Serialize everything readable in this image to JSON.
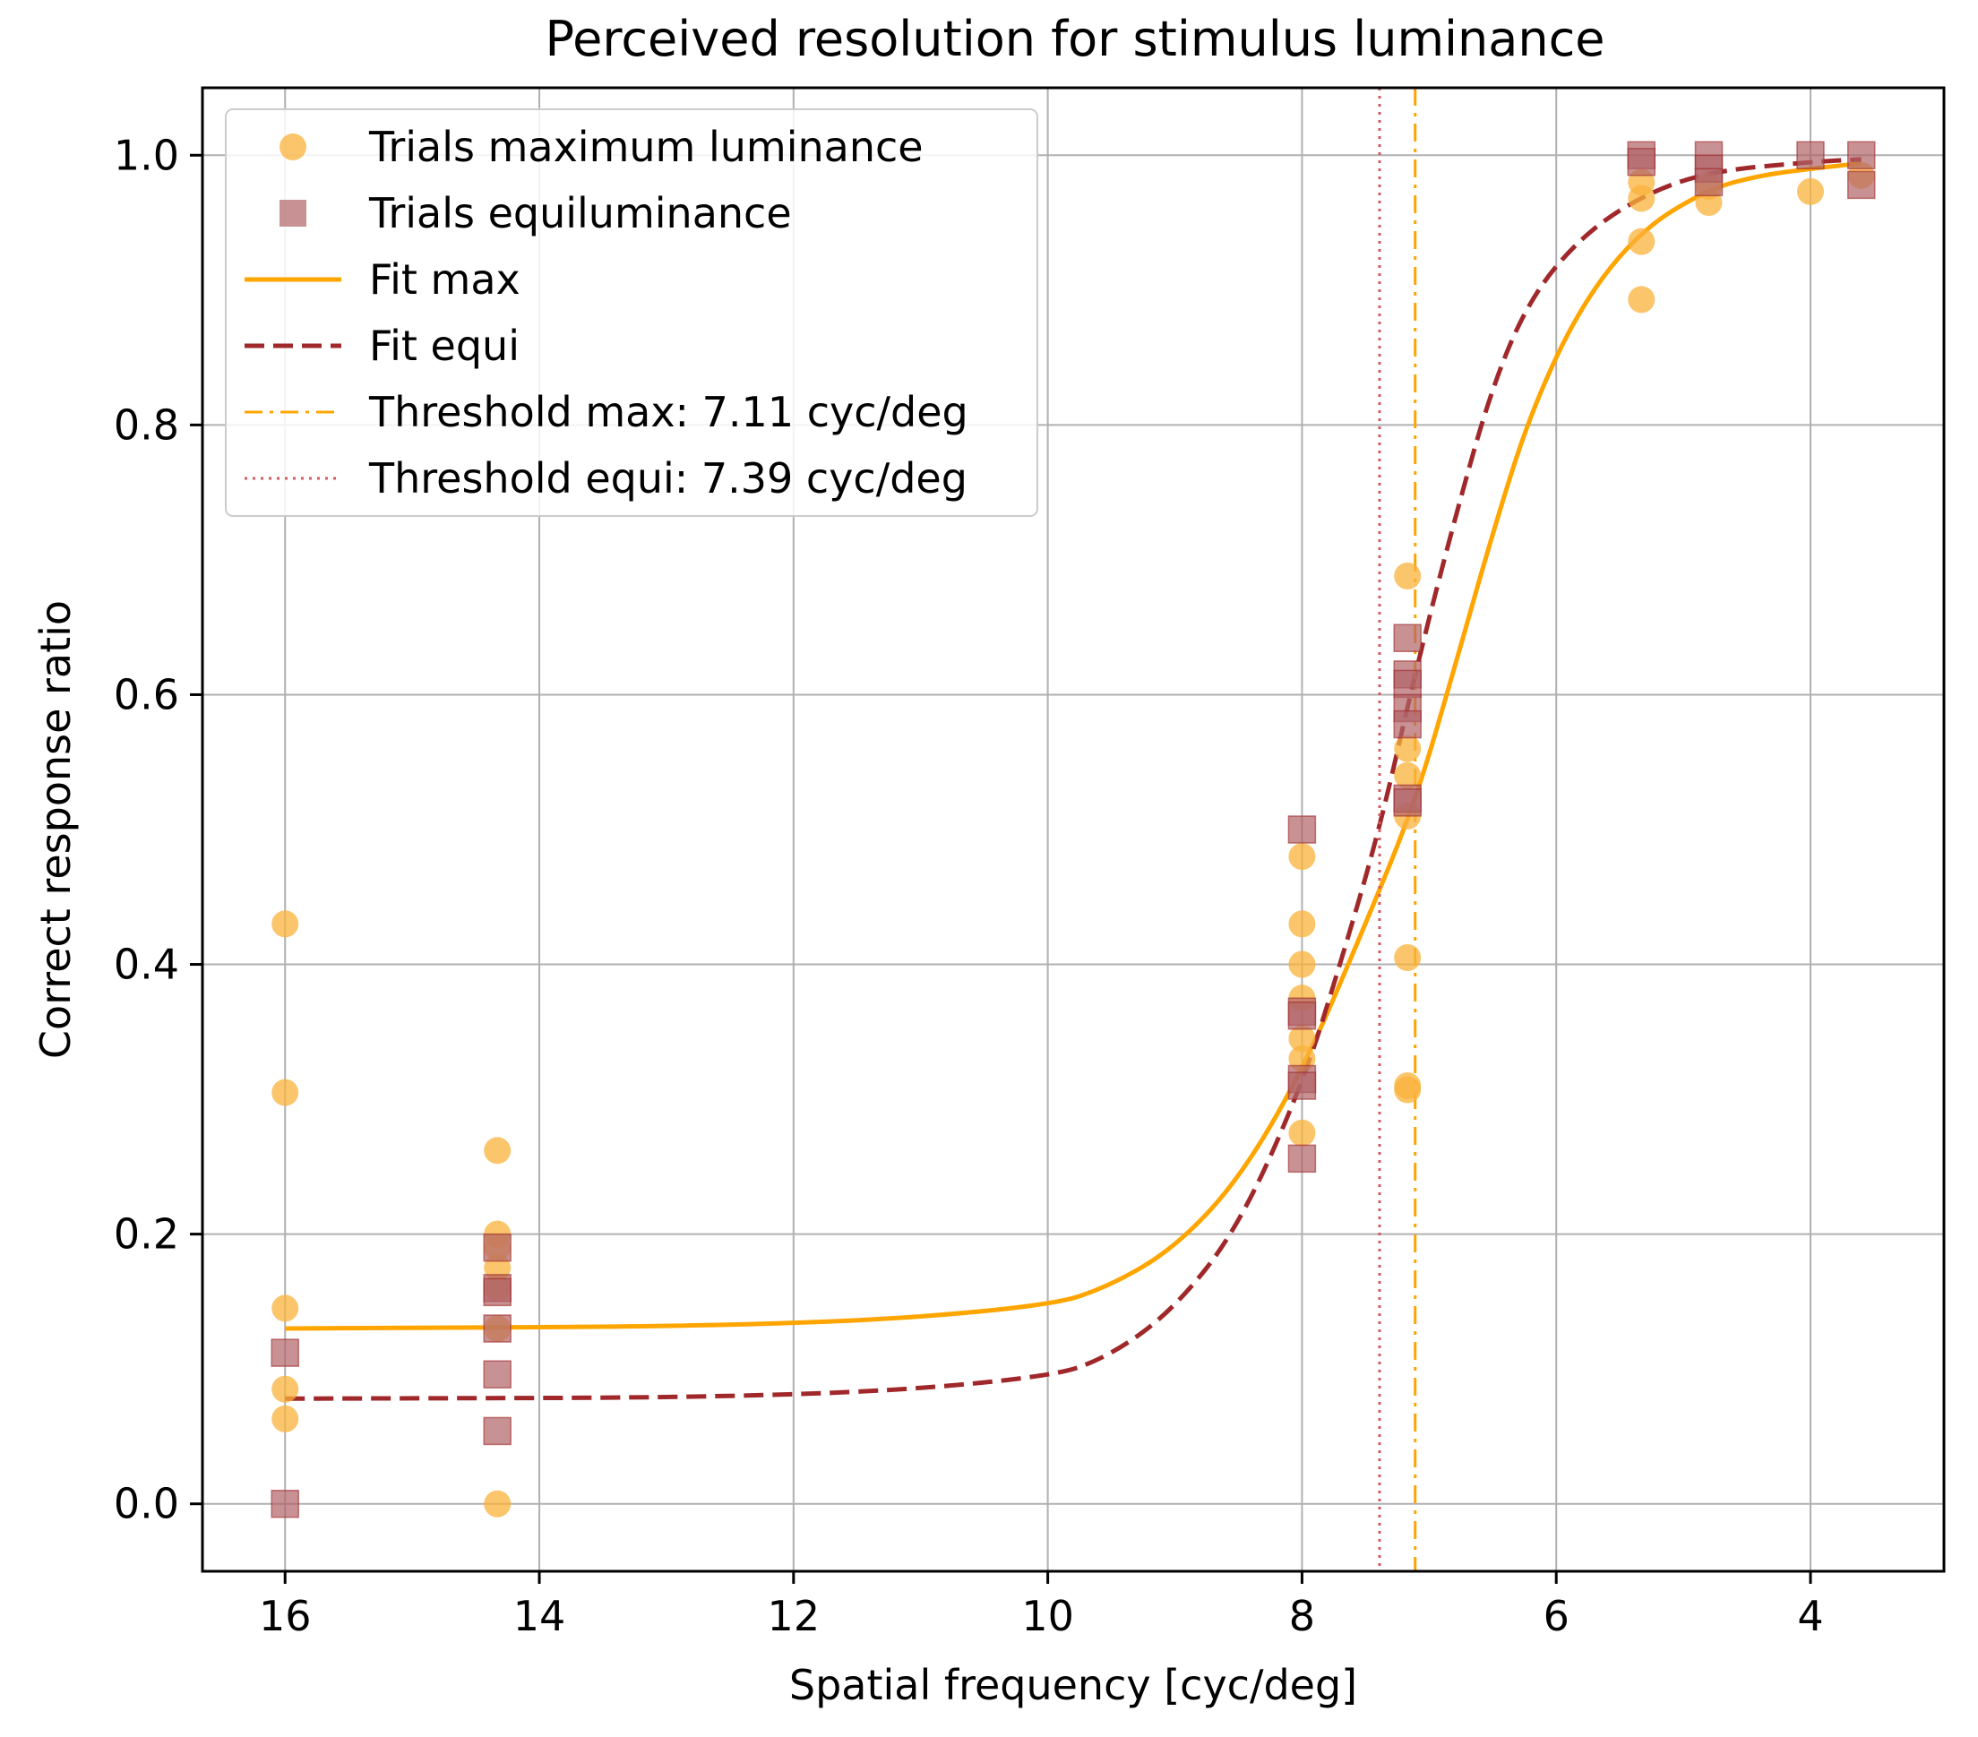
{
  "chart_data": {
    "type": "scatter",
    "title": "Perceived resolution for stimulus luminance",
    "xlabel": "Spatial frequency [cyc/deg]",
    "ylabel": "Correct response ratio",
    "x_axis": {
      "reversed": true,
      "range": [
        16.65,
        2.95
      ],
      "ticks": [
        16,
        14,
        12,
        10,
        8,
        6,
        4
      ],
      "tick_labels": [
        "16",
        "14",
        "12",
        "10",
        "8",
        "6",
        "4"
      ]
    },
    "y_axis": {
      "range": [
        -0.05,
        1.05
      ],
      "ticks": [
        0.0,
        0.2,
        0.4,
        0.6,
        0.8,
        1.0
      ],
      "tick_labels": [
        "0.0",
        "0.2",
        "0.4",
        "0.6",
        "0.8",
        "1.0"
      ]
    },
    "grid": true,
    "legend_position": "upper-left",
    "colors": {
      "max": "#FFA500",
      "max_points": "#F9B23B",
      "equi": "#A0282A",
      "equi_points": "#B16468",
      "threshold_equi": "#D45A62"
    },
    "series": [
      {
        "name": "Trials maximum luminance",
        "kind": "scatter",
        "marker": "circle",
        "color": "#F9B23B",
        "points": [
          [
            16.0,
            0.43
          ],
          [
            16.0,
            0.305
          ],
          [
            16.0,
            0.145
          ],
          [
            16.0,
            0.085
          ],
          [
            16.0,
            0.063
          ],
          [
            14.33,
            0.262
          ],
          [
            14.33,
            0.2
          ],
          [
            14.33,
            0.19
          ],
          [
            14.33,
            0.175
          ],
          [
            14.33,
            0.16
          ],
          [
            14.33,
            0.13
          ],
          [
            14.33,
            0.0
          ],
          [
            8.0,
            0.48
          ],
          [
            8.0,
            0.43
          ],
          [
            8.0,
            0.4
          ],
          [
            8.0,
            0.375
          ],
          [
            8.0,
            0.345
          ],
          [
            8.0,
            0.33
          ],
          [
            8.0,
            0.275
          ],
          [
            7.17,
            0.688
          ],
          [
            7.17,
            0.56
          ],
          [
            7.17,
            0.54
          ],
          [
            7.17,
            0.51
          ],
          [
            7.17,
            0.405
          ],
          [
            7.17,
            0.31
          ],
          [
            7.17,
            0.307
          ],
          [
            5.33,
            0.98
          ],
          [
            5.33,
            0.968
          ],
          [
            5.33,
            0.936
          ],
          [
            5.33,
            0.893
          ],
          [
            4.8,
            0.977
          ],
          [
            4.8,
            0.965
          ],
          [
            4.0,
            0.973
          ],
          [
            3.6,
            0.985
          ]
        ]
      },
      {
        "name": "Trials equiluminance",
        "kind": "scatter",
        "marker": "square",
        "color": "#B16468",
        "points": [
          [
            16.0,
            0.112
          ],
          [
            16.0,
            0.0
          ],
          [
            14.33,
            0.19
          ],
          [
            14.33,
            0.16
          ],
          [
            14.33,
            0.157
          ],
          [
            14.33,
            0.13
          ],
          [
            14.33,
            0.096
          ],
          [
            14.33,
            0.054
          ],
          [
            8.0,
            0.5
          ],
          [
            8.0,
            0.365
          ],
          [
            8.0,
            0.362
          ],
          [
            8.0,
            0.315
          ],
          [
            8.0,
            0.31
          ],
          [
            8.0,
            0.256
          ],
          [
            7.17,
            0.642
          ],
          [
            7.17,
            0.615
          ],
          [
            7.17,
            0.608
          ],
          [
            7.17,
            0.59
          ],
          [
            7.17,
            0.578
          ],
          [
            7.17,
            0.523
          ],
          [
            7.17,
            0.52
          ],
          [
            5.33,
            1.0
          ],
          [
            5.33,
            0.995
          ],
          [
            4.8,
            1.0
          ],
          [
            4.8,
            0.99
          ],
          [
            4.8,
            0.98
          ],
          [
            4.0,
            1.0
          ],
          [
            3.6,
            1.0
          ],
          [
            3.6,
            0.978
          ]
        ]
      },
      {
        "name": "Fit max",
        "kind": "line",
        "style": "solid",
        "color": "#FFA500",
        "x": [
          16.0,
          12.0,
          10.0,
          9.5,
          9.0,
          8.5,
          8.0,
          7.5,
          7.11,
          6.8,
          6.5,
          6.2,
          5.8,
          5.33,
          4.8,
          4.4,
          4.0,
          3.6
        ],
        "y": [
          0.13,
          0.132,
          0.146,
          0.162,
          0.19,
          0.24,
          0.32,
          0.43,
          0.52,
          0.62,
          0.72,
          0.81,
          0.89,
          0.945,
          0.975,
          0.985,
          0.99,
          0.994
        ]
      },
      {
        "name": "Fit equi",
        "kind": "line",
        "style": "dashed",
        "color": "#A0282A",
        "x": [
          16.0,
          12.0,
          10.0,
          9.5,
          9.0,
          8.5,
          8.0,
          7.7,
          7.39,
          7.1,
          6.8,
          6.5,
          6.2,
          5.8,
          5.33,
          4.8,
          4.0,
          3.6
        ],
        "y": [
          0.078,
          0.079,
          0.093,
          0.11,
          0.145,
          0.205,
          0.31,
          0.4,
          0.5,
          0.62,
          0.73,
          0.83,
          0.895,
          0.94,
          0.97,
          0.988,
          0.995,
          0.997
        ]
      },
      {
        "name": "Threshold max: 7.11 cyc/deg",
        "kind": "vline",
        "style": "dashdot",
        "color": "#FFA500",
        "x": 7.11
      },
      {
        "name": "Threshold equi: 7.39 cyc/deg",
        "kind": "vline",
        "style": "dotted",
        "color": "#D45A62",
        "x": 7.39
      }
    ]
  }
}
